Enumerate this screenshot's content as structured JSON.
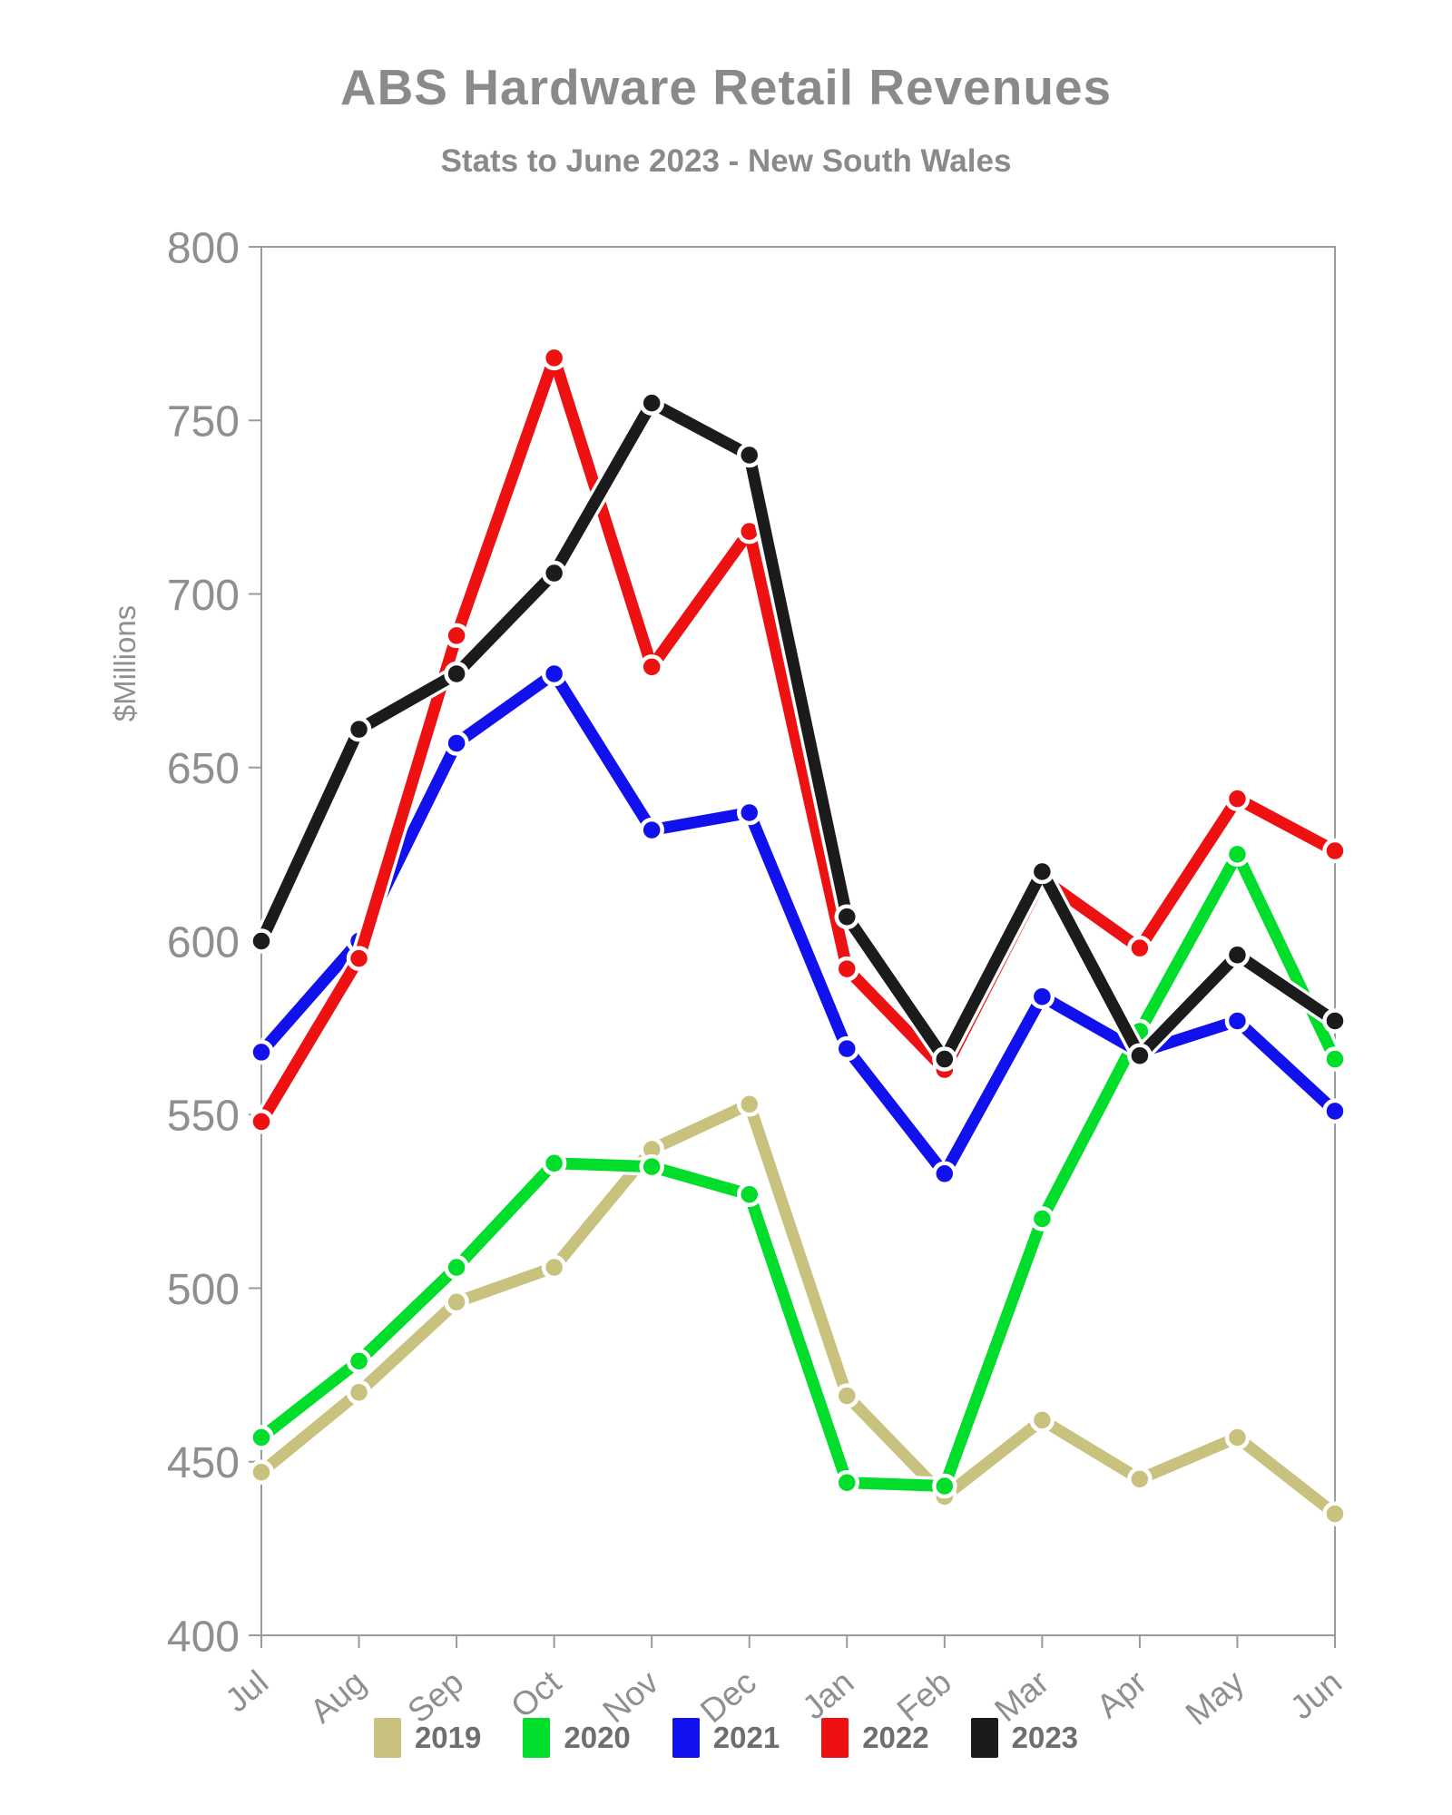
{
  "header": {
    "title": "ABS Hardware Retail Revenues",
    "subtitle": "Stats to June 2023 - New South Wales"
  },
  "chart_data": {
    "type": "line",
    "title": "ABS Hardware Retail Revenues",
    "subtitle": "Stats to June 2023 - New South Wales",
    "xlabel": "",
    "ylabel": "$Millions",
    "ylim": [
      400,
      800
    ],
    "ytick_step": 50,
    "grid": false,
    "legend_position": "bottom",
    "marker_style": "circle-white-ring",
    "axis_color": "#9a9a9a",
    "tick_label_color": "#8f8f8f",
    "categories": [
      "Jul",
      "Aug",
      "Sep",
      "Oct",
      "Nov",
      "Dec",
      "Jan",
      "Feb",
      "Mar",
      "Apr",
      "May",
      "Jun"
    ],
    "series": [
      {
        "name": "2019",
        "color": "#c9c27e",
        "values": [
          447,
          470,
          496,
          506,
          540,
          553,
          469,
          440,
          462,
          445,
          457,
          435
        ]
      },
      {
        "name": "2020",
        "color": "#00dd2b",
        "values": [
          457,
          479,
          506,
          536,
          535,
          527,
          444,
          443,
          520,
          574,
          625,
          566
        ]
      },
      {
        "name": "2021",
        "color": "#1111ee",
        "values": [
          568,
          600,
          657,
          677,
          632,
          637,
          569,
          533,
          584,
          568,
          577,
          551
        ]
      },
      {
        "name": "2022",
        "color": "#ee1111",
        "values": [
          548,
          595,
          688,
          768,
          679,
          718,
          592,
          563,
          618,
          598,
          641,
          626
        ]
      },
      {
        "name": "2023",
        "color": "#1b1b1b",
        "values": [
          600,
          661,
          677,
          706,
          755,
          740,
          607,
          566,
          620,
          567,
          596,
          577
        ]
      }
    ]
  }
}
